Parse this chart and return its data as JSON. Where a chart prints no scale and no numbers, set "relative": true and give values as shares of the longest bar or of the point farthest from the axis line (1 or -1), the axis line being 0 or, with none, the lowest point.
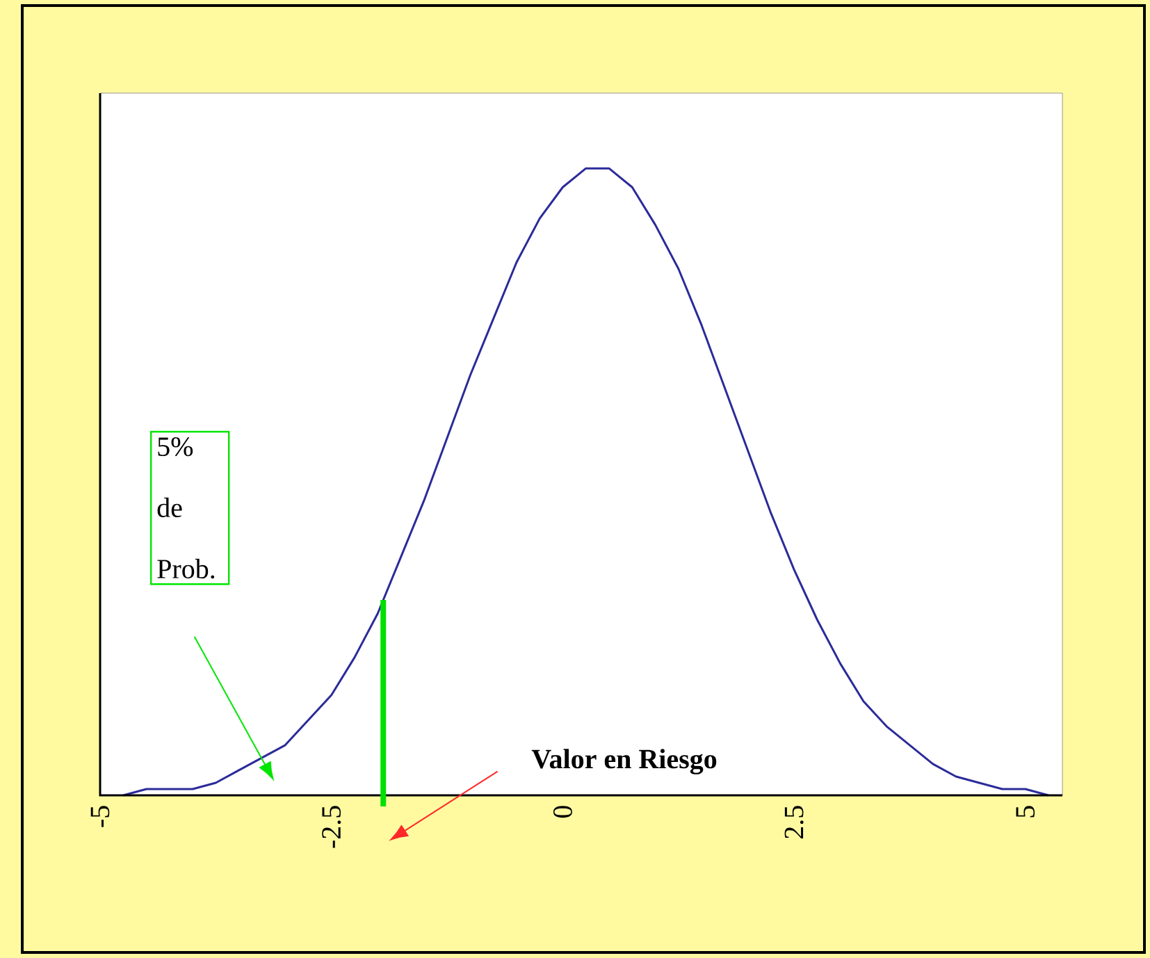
{
  "chart_data": {
    "type": "line",
    "relative": true,
    "x": [
      -4.75,
      -4.5,
      -4.25,
      -4,
      -3.75,
      -3.5,
      -3.25,
      -3,
      -2.75,
      -2.5,
      -2.25,
      -2,
      -1.75,
      -1.5,
      -1.25,
      -1,
      -0.75,
      -0.5,
      -0.25,
      0,
      0.25,
      0.5,
      0.75,
      1,
      1.25,
      1.5,
      1.75,
      2,
      2.25,
      2.5,
      2.75,
      3,
      3.25,
      3.5,
      3.75,
      4,
      4.25,
      4.5,
      4.75,
      5,
      5.25
    ],
    "series": [
      {
        "color": "#2b2b9a",
        "values": [
          0,
          0.01,
          0.01,
          0.01,
          0.02,
          0.04,
          0.06,
          0.08,
          0.12,
          0.16,
          0.22,
          0.29,
          0.38,
          0.47,
          0.57,
          0.67,
          0.76,
          0.85,
          0.92,
          0.97,
          1,
          1,
          0.97,
          0.91,
          0.84,
          0.75,
          0.65,
          0.55,
          0.45,
          0.36,
          0.28,
          0.21,
          0.15,
          0.11,
          0.08,
          0.05,
          0.03,
          0.02,
          0.01,
          0.01,
          0
        ]
      }
    ],
    "xlim": [
      -5,
      5.4
    ],
    "xticks": [
      -5,
      -2.5,
      0,
      2.5,
      5
    ],
    "ref_lines": [
      {
        "axis": "x",
        "value": -1.94,
        "color": "#00e000"
      }
    ],
    "annotations": [
      "5% de Prob.",
      "Valor en Riesgo"
    ],
    "marker": "none",
    "line_style": "solid",
    "grid": false
  }
}
